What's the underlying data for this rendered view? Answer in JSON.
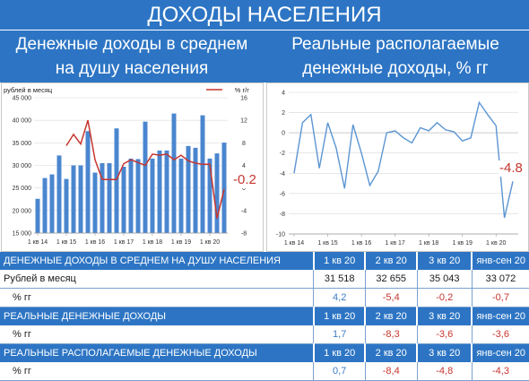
{
  "title": "ДОХОДЫ НАСЕЛЕНИЯ",
  "left_header_1": "Денежные доходы в среднем",
  "left_header_2": "на душу населения",
  "right_header_1": "Реальные располагаемые",
  "right_header_2": "денежные доходы, % гг",
  "colors": {
    "header_bg": "#2d75c4",
    "bar": "#4a86cf",
    "red_line": "#c6352e",
    "blue_line": "#5b95d2"
  },
  "chart_data": [
    {
      "type": "bar",
      "ylabel": "рублей в месяц",
      "y2label": "% г/г",
      "legend_position": "top",
      "ylim": [
        15000,
        45000
      ],
      "y_ticks": [
        "15 000",
        "20 000",
        "25 000",
        "30 000",
        "35 000",
        "40 000",
        "45 000"
      ],
      "y2lim": [
        -8,
        16
      ],
      "y2_ticks": [
        "-8",
        "-4",
        "0",
        "4",
        "8",
        "12",
        "16"
      ],
      "x_tick_labels": [
        "1 кв 14",
        "1 кв 15",
        "1 кв 16",
        "1 кв 17",
        "1 кв 18",
        "1 кв 19",
        "1 кв 20"
      ],
      "categories": [
        "1 кв 14",
        "2 кв 14",
        "3 кв 14",
        "4 кв 14",
        "1 кв 15",
        "2 кв 15",
        "3 кв 15",
        "4 кв 15",
        "1 кв 16",
        "2 кв 16",
        "3 кв 16",
        "4 кв 16",
        "1 кв 17",
        "2 кв 17",
        "3 кв 17",
        "4 кв 17",
        "1 кв 18",
        "2 кв 18",
        "3 кв 18",
        "4 кв 18",
        "1 кв 19",
        "2 кв 19",
        "3 кв 19",
        "4 кв 19",
        "1 кв 20",
        "2 кв 20",
        "3 кв 20"
      ],
      "series": [
        {
          "name": "рублей в месяц",
          "axis": "left",
          "values": [
            22600,
            27200,
            28000,
            32200,
            27000,
            30000,
            30000,
            37600,
            28400,
            30500,
            30500,
            38200,
            29700,
            31500,
            31400,
            39700,
            31500,
            33300,
            33300,
            41500,
            31500,
            34300,
            33900,
            41100,
            31518,
            32655,
            35043
          ]
        },
        {
          "name": "% г/г",
          "axis": "right",
          "values": [
            null,
            null,
            null,
            null,
            7.5,
            9.5,
            7.8,
            12,
            5,
            1.5,
            1.5,
            1.5,
            4.3,
            5,
            4.5,
            4,
            6,
            5.8,
            6,
            5,
            5.8,
            4.8,
            4.4,
            4.2,
            4.2,
            -5.4,
            -0.2
          ]
        }
      ],
      "last_value_label": "-0.2"
    },
    {
      "type": "line",
      "ylim": [
        -10,
        4
      ],
      "y_ticks": [
        "-10",
        "-8",
        "-6",
        "-4",
        "-2",
        "0",
        "2",
        "4"
      ],
      "x_tick_labels": [
        "1 кв 14",
        "1 кв 15",
        "1 кв 16",
        "1 кв 17",
        "1 кв 18",
        "1 кв 19",
        "1 кв 20"
      ],
      "series": [
        {
          "name": "Реальные располагаемые денежные доходы, % гг",
          "values": [
            -4,
            1,
            1.8,
            -3.5,
            1,
            -1.5,
            -5.5,
            0.8,
            -2,
            -5.2,
            -3.8,
            0,
            0.2,
            -0.5,
            -1,
            0.5,
            0.2,
            1,
            0.3,
            0.1,
            -0.8,
            -0.5,
            3,
            1.8,
            0.7,
            -8.4,
            -4.8
          ]
        }
      ],
      "last_value_label": "-4.8"
    }
  ],
  "table": {
    "sections": [
      {
        "title": "ДЕНЕЖНЫЕ ДОХОДЫ В СРЕДНЕМ НА ДУШУ НАСЕЛЕНИЯ",
        "cols": [
          "1 кв 20",
          "2 кв 20",
          "3 кв 20",
          "янв-сен 20"
        ],
        "rows": [
          {
            "label": "Рублей в месяц",
            "values": [
              "31 518",
              "32 655",
              "35 043",
              "33 072"
            ]
          },
          {
            "label": "% гг",
            "values": [
              "4,2",
              "-5,4",
              "-0,2",
              "-0,7"
            ]
          }
        ]
      },
      {
        "title": "РЕАЛЬНЫЕ ДЕНЕЖНЫЕ ДОХОДЫ",
        "cols": [
          "1 кв 20",
          "2 кв 20",
          "3 кв 20",
          "янв-сен 20"
        ],
        "rows": [
          {
            "label": "% гг",
            "values": [
              "1,7",
              "-8,3",
              "-3,6",
              "-3,6"
            ]
          }
        ]
      },
      {
        "title": "РЕАЛЬНЫЕ РАСПОЛАГАЕМЫЕ ДЕНЕЖНЫЕ ДОХОДЫ",
        "cols": [
          "1 кв 20",
          "2 кв 20",
          "3 кв 20",
          "янв-сен 20"
        ],
        "rows": [
          {
            "label": "% гг",
            "values": [
              "0,7",
              "-8,4",
              "-4,8",
              "-4,3"
            ]
          }
        ]
      }
    ]
  }
}
